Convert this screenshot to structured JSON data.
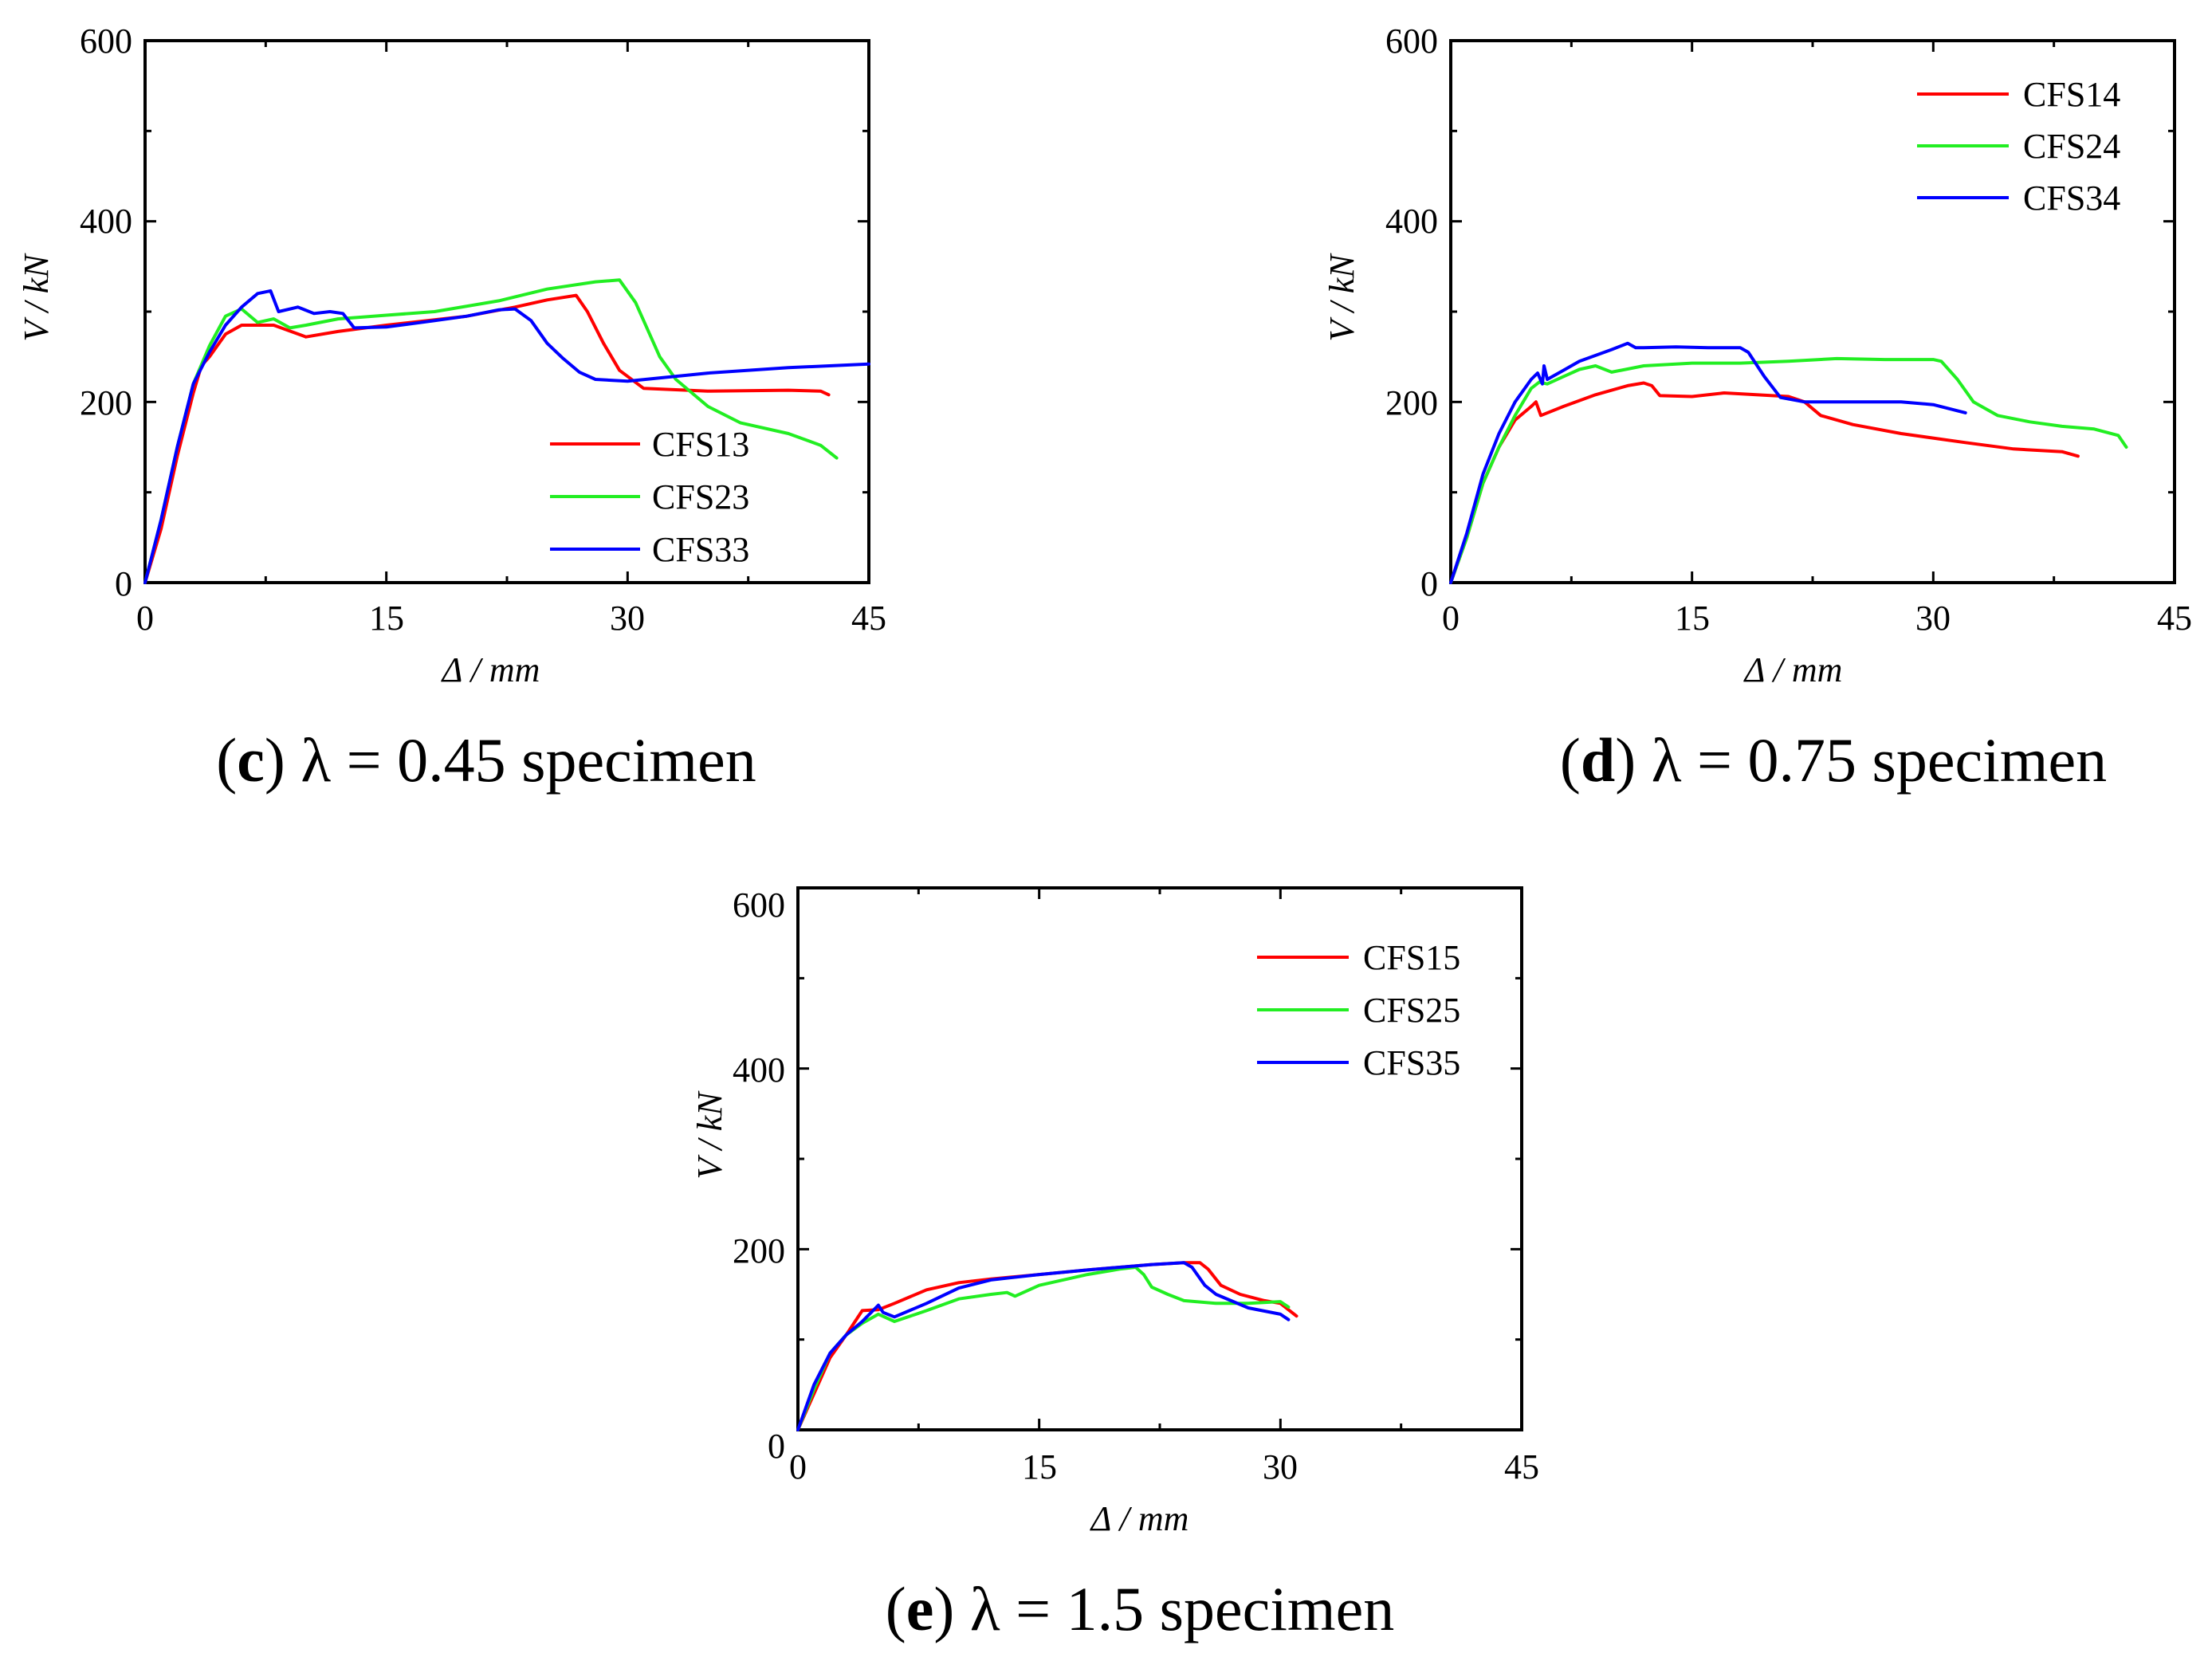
{
  "colors": {
    "red": "#ff0000",
    "green": "#22ee22",
    "blue": "#0000ff",
    "axis": "#000000"
  },
  "chart_data": [
    {
      "type": "line",
      "panel": "c",
      "caption": {
        "letter": "c",
        "text": "λ = 0.45 specimen"
      },
      "xlabel": "Δ / mm",
      "ylabel": "V / kN",
      "xlim": [
        0,
        45
      ],
      "ylim": [
        0,
        600
      ],
      "xticks": [
        0,
        15,
        30,
        45
      ],
      "yticks": [
        0,
        200,
        400,
        600
      ],
      "legend_position": "bottom-right",
      "series": [
        {
          "name": "CFS13",
          "color": "#ff0000",
          "points": [
            [
              0,
              0
            ],
            [
              1,
              60
            ],
            [
              2,
              140
            ],
            [
              3,
              210
            ],
            [
              3.5,
              240
            ],
            [
              4,
              250
            ],
            [
              5,
              275
            ],
            [
              6,
              285
            ],
            [
              8,
              285
            ],
            [
              10,
              272
            ],
            [
              12,
              278
            ],
            [
              15,
              285
            ],
            [
              20,
              295
            ],
            [
              23,
              305
            ],
            [
              25,
              313
            ],
            [
              26.8,
              318
            ],
            [
              27.5,
              300
            ],
            [
              28.5,
              265
            ],
            [
              29.5,
              235
            ],
            [
              31,
              215
            ],
            [
              35,
              212
            ],
            [
              40,
              213
            ],
            [
              42,
              212
            ],
            [
              42.5,
              208
            ]
          ]
        },
        {
          "name": "CFS23",
          "color": "#22ee22",
          "points": [
            [
              0,
              0
            ],
            [
              1,
              70
            ],
            [
              2,
              150
            ],
            [
              3,
              220
            ],
            [
              4,
              262
            ],
            [
              5,
              295
            ],
            [
              6,
              303
            ],
            [
              7,
              288
            ],
            [
              8,
              292
            ],
            [
              9,
              282
            ],
            [
              10,
              285
            ],
            [
              12,
              292
            ],
            [
              15,
              296
            ],
            [
              18,
              300
            ],
            [
              22,
              312
            ],
            [
              25,
              325
            ],
            [
              28,
              333
            ],
            [
              29.5,
              335
            ],
            [
              30.5,
              310
            ],
            [
              32,
              250
            ],
            [
              33,
              225
            ],
            [
              35,
              195
            ],
            [
              37,
              177
            ],
            [
              40,
              165
            ],
            [
              42,
              152
            ],
            [
              43,
              138
            ]
          ]
        },
        {
          "name": "CFS33",
          "color": "#0000ff",
          "points": [
            [
              0,
              0
            ],
            [
              1,
              70
            ],
            [
              2,
              150
            ],
            [
              3,
              220
            ],
            [
              4,
              255
            ],
            [
              5,
              285
            ],
            [
              6,
              305
            ],
            [
              7,
              320
            ],
            [
              7.8,
              323
            ],
            [
              8.3,
              300
            ],
            [
              9.5,
              305
            ],
            [
              10.5,
              298
            ],
            [
              11.5,
              300
            ],
            [
              12.3,
              298
            ],
            [
              13,
              282
            ],
            [
              15,
              283
            ],
            [
              18,
              290
            ],
            [
              20,
              295
            ],
            [
              22,
              302
            ],
            [
              23,
              303
            ],
            [
              24,
              290
            ],
            [
              25,
              265
            ],
            [
              26,
              248
            ],
            [
              27,
              233
            ],
            [
              28,
              225
            ],
            [
              30,
              223
            ],
            [
              35,
              232
            ],
            [
              40,
              238
            ],
            [
              45,
              242
            ]
          ]
        }
      ]
    },
    {
      "type": "line",
      "panel": "d",
      "caption": {
        "letter": "d",
        "text": "λ = 0.75 specimen"
      },
      "xlabel": "Δ / mm",
      "ylabel": "V / kN",
      "xlim": [
        0,
        45
      ],
      "ylim": [
        0,
        600
      ],
      "xticks": [
        0,
        15,
        30,
        45
      ],
      "yticks": [
        0,
        200,
        400,
        600
      ],
      "legend_position": "top-right",
      "series": [
        {
          "name": "CFS14",
          "color": "#ff0000",
          "points": [
            [
              0,
              0
            ],
            [
              1,
              50
            ],
            [
              2,
              110
            ],
            [
              3,
              150
            ],
            [
              4,
              180
            ],
            [
              5,
              195
            ],
            [
              5.3,
              200
            ],
            [
              5.6,
              185
            ],
            [
              7,
              195
            ],
            [
              9,
              208
            ],
            [
              11,
              218
            ],
            [
              12,
              221
            ],
            [
              12.5,
              218
            ],
            [
              13,
              207
            ],
            [
              15,
              206
            ],
            [
              17,
              210
            ],
            [
              19,
              208
            ],
            [
              21,
              206
            ],
            [
              22,
              200
            ],
            [
              23,
              185
            ],
            [
              25,
              175
            ],
            [
              28,
              165
            ],
            [
              32,
              155
            ],
            [
              35,
              148
            ],
            [
              38,
              145
            ],
            [
              39,
              140
            ]
          ]
        },
        {
          "name": "CFS24",
          "color": "#22ee22",
          "points": [
            [
              0,
              0
            ],
            [
              1,
              50
            ],
            [
              2,
              110
            ],
            [
              3,
              150
            ],
            [
              4,
              185
            ],
            [
              5,
              215
            ],
            [
              5.5,
              222
            ],
            [
              6,
              220
            ],
            [
              7,
              228
            ],
            [
              8,
              236
            ],
            [
              9,
              240
            ],
            [
              10,
              233
            ],
            [
              12,
              240
            ],
            [
              15,
              243
            ],
            [
              18,
              243
            ],
            [
              21,
              245
            ],
            [
              24,
              248
            ],
            [
              27,
              247
            ],
            [
              30,
              247
            ],
            [
              30.5,
              245
            ],
            [
              31.5,
              225
            ],
            [
              32.5,
              200
            ],
            [
              34,
              185
            ],
            [
              36,
              178
            ],
            [
              38,
              173
            ],
            [
              40,
              170
            ],
            [
              41.5,
              163
            ],
            [
              42,
              150
            ]
          ]
        },
        {
          "name": "CFS34",
          "color": "#0000ff",
          "points": [
            [
              0,
              0
            ],
            [
              1,
              55
            ],
            [
              2,
              120
            ],
            [
              3,
              165
            ],
            [
              4,
              200
            ],
            [
              5,
              225
            ],
            [
              5.4,
              232
            ],
            [
              5.7,
              220
            ],
            [
              5.8,
              240
            ],
            [
              6,
              225
            ],
            [
              7,
              235
            ],
            [
              8,
              245
            ],
            [
              10,
              258
            ],
            [
              11,
              265
            ],
            [
              11.5,
              260
            ],
            [
              12,
              260
            ],
            [
              14,
              261
            ],
            [
              16,
              260
            ],
            [
              18,
              260
            ],
            [
              18.5,
              255
            ],
            [
              19.5,
              228
            ],
            [
              20.5,
              205
            ],
            [
              22,
              200
            ],
            [
              25,
              200
            ],
            [
              28,
              200
            ],
            [
              30,
              197
            ],
            [
              32,
              188
            ]
          ]
        }
      ]
    },
    {
      "type": "line",
      "panel": "e",
      "caption": {
        "letter": "e",
        "text": "λ = 1.5 specimen"
      },
      "xlabel": "Δ / mm",
      "ylabel": "V / kN",
      "xlim": [
        0,
        45
      ],
      "ylim": [
        0,
        600
      ],
      "xticks": [
        0,
        15,
        30,
        45
      ],
      "yticks": [
        0,
        200,
        400,
        600
      ],
      "legend_position": "top-right",
      "series": [
        {
          "name": "CFS15",
          "color": "#ff0000",
          "points": [
            [
              0,
              0
            ],
            [
              1,
              40
            ],
            [
              2,
              80
            ],
            [
              3,
              105
            ],
            [
              4,
              132
            ],
            [
              5,
              133
            ],
            [
              6,
              140
            ],
            [
              8,
              155
            ],
            [
              10,
              163
            ],
            [
              12,
              167
            ],
            [
              15,
              172
            ],
            [
              18,
              177
            ],
            [
              20,
              180
            ],
            [
              22,
              183
            ],
            [
              24,
              185
            ],
            [
              25,
              185
            ],
            [
              25.5,
              178
            ],
            [
              26.3,
              160
            ],
            [
              27.5,
              150
            ],
            [
              29,
              143
            ],
            [
              30,
              140
            ],
            [
              30.5,
              133
            ],
            [
              31,
              126
            ]
          ]
        },
        {
          "name": "CFS25",
          "color": "#22ee22",
          "points": [
            [
              0,
              0
            ],
            [
              1,
              45
            ],
            [
              2,
              85
            ],
            [
              3,
              105
            ],
            [
              4,
              118
            ],
            [
              5,
              128
            ],
            [
              6,
              120
            ],
            [
              8,
              132
            ],
            [
              10,
              145
            ],
            [
              12,
              150
            ],
            [
              13,
              152
            ],
            [
              13.5,
              148
            ],
            [
              15,
              160
            ],
            [
              18,
              172
            ],
            [
              20,
              178
            ],
            [
              21,
              180
            ],
            [
              21.5,
              172
            ],
            [
              22,
              158
            ],
            [
              23,
              150
            ],
            [
              24,
              143
            ],
            [
              26,
              140
            ],
            [
              28,
              140
            ],
            [
              30,
              142
            ],
            [
              30.5,
              136
            ]
          ]
        },
        {
          "name": "CFS35",
          "color": "#0000ff",
          "points": [
            [
              0,
              0
            ],
            [
              1,
              50
            ],
            [
              2,
              85
            ],
            [
              3,
              105
            ],
            [
              4,
              120
            ],
            [
              5,
              138
            ],
            [
              5.3,
              130
            ],
            [
              6,
              125
            ],
            [
              8,
              140
            ],
            [
              10,
              157
            ],
            [
              12,
              166
            ],
            [
              15,
              172
            ],
            [
              18,
              177
            ],
            [
              20,
              180
            ],
            [
              22,
              183
            ],
            [
              24,
              185
            ],
            [
              24.5,
              180
            ],
            [
              25.3,
              160
            ],
            [
              26,
              150
            ],
            [
              28,
              135
            ],
            [
              30,
              128
            ],
            [
              30.5,
              122
            ]
          ]
        }
      ]
    }
  ]
}
